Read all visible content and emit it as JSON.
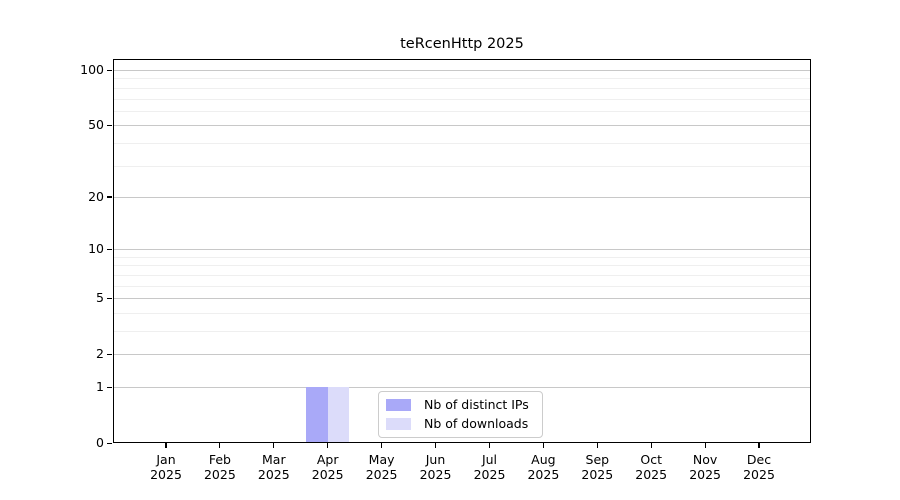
{
  "title": "teRcenHttp 2025",
  "colors": {
    "distinct_ips": "#a9a9f8",
    "downloads": "#dcdcfa",
    "grid_major": "#c8c8c8",
    "grid_minor": "#efefef",
    "axis": "#000000",
    "legend_border": "#cccccc",
    "background": "#ffffff"
  },
  "legend": {
    "items": [
      "Nb of distinct IPs",
      "Nb of downloads"
    ]
  },
  "chart_data": {
    "type": "bar",
    "title": "teRcenHttp 2025",
    "categories": [
      "Jan 2025",
      "Feb 2025",
      "Mar 2025",
      "Apr 2025",
      "May 2025",
      "Jun 2025",
      "Jul 2025",
      "Aug 2025",
      "Sep 2025",
      "Oct 2025",
      "Nov 2025",
      "Dec 2025"
    ],
    "series": [
      {
        "name": "Nb of distinct IPs",
        "color": "#a9a9f8",
        "values": [
          0,
          0,
          0,
          1,
          0,
          0,
          0,
          0,
          0,
          0,
          0,
          0
        ]
      },
      {
        "name": "Nb of downloads",
        "color": "#dcdcfa",
        "values": [
          0,
          0,
          0,
          1,
          0,
          0,
          0,
          0,
          0,
          0,
          0,
          0
        ]
      }
    ],
    "xlabel": "",
    "ylabel": "",
    "yscale": "log1p",
    "ylim": [
      0,
      115
    ],
    "y_major_ticks": [
      0,
      1,
      2,
      5,
      10,
      20,
      50,
      100
    ],
    "y_minor_ticks": [
      3,
      4,
      6,
      7,
      8,
      9,
      30,
      40,
      60,
      70,
      80,
      90
    ],
    "grid": true,
    "legend_position": "lower center"
  }
}
